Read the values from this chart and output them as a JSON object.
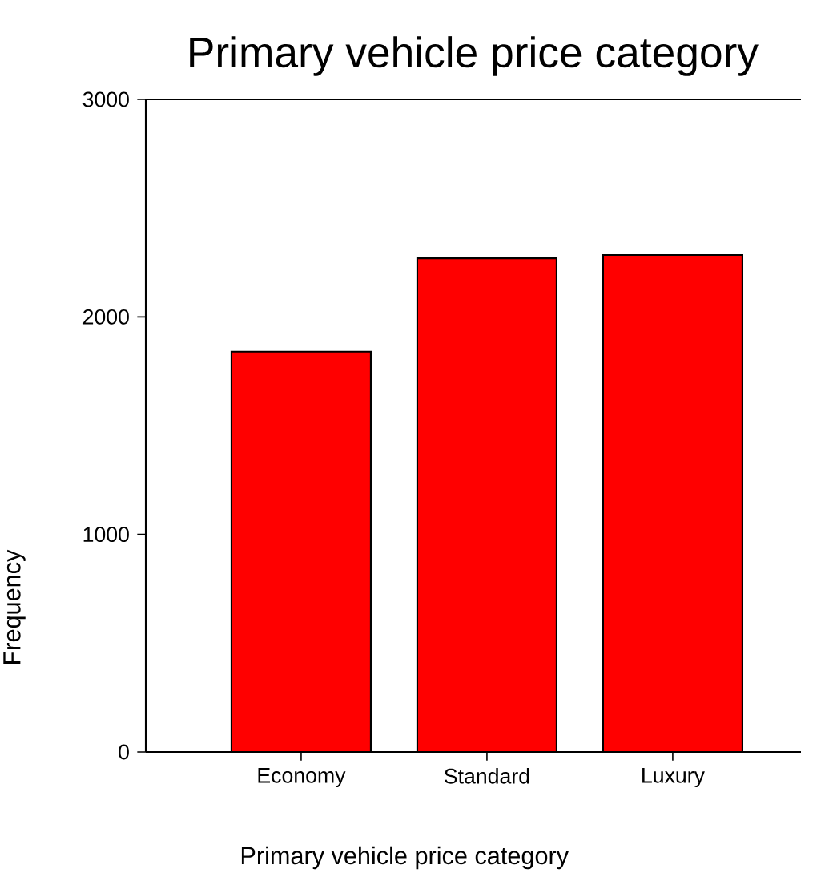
{
  "chart_data": {
    "type": "bar",
    "title": "Primary vehicle price category",
    "xlabel": "Primary vehicle price category",
    "ylabel": "Frequency",
    "categories": [
      "Economy",
      "Standard",
      "Luxury"
    ],
    "values": [
      1840,
      2270,
      2285
    ],
    "color": "#ff0000",
    "ylim": [
      0,
      3000
    ],
    "yticks": [
      0,
      1000,
      2000,
      3000
    ],
    "grid": false
  }
}
